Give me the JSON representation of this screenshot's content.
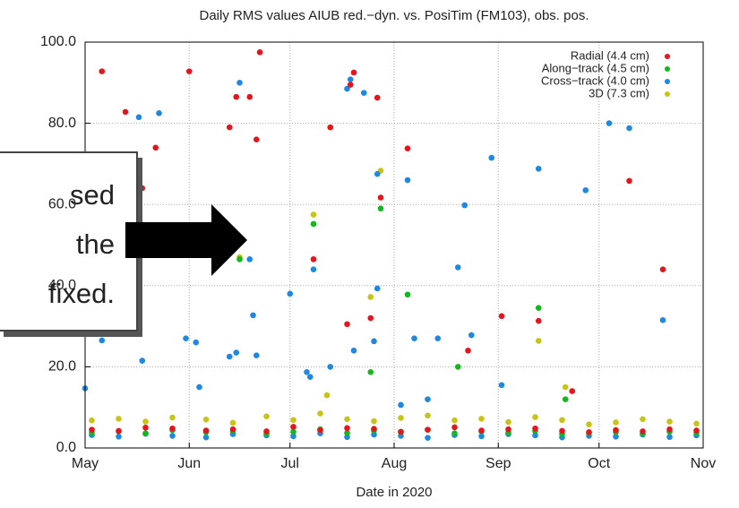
{
  "chart_data": {
    "type": "scatter",
    "title": "Daily RMS values AIUB red.−dyn. vs. PosiTim (FM103), obs. pos.",
    "x_label": "Date in 2020",
    "xlim": [
      122,
      306
    ],
    "xticks": [
      {
        "value": 122,
        "label": "May"
      },
      {
        "value": 153,
        "label": "Jun"
      },
      {
        "value": 183,
        "label": "Jul"
      },
      {
        "value": 214,
        "label": "Aug"
      },
      {
        "value": 245,
        "label": "Sep"
      },
      {
        "value": 275,
        "label": "Oct"
      },
      {
        "value": 306,
        "label": "Nov"
      }
    ],
    "ylim": [
      0,
      100
    ],
    "yticks": [
      {
        "value": 0,
        "label": "0.0"
      },
      {
        "value": 20,
        "label": "20.0"
      },
      {
        "value": 40,
        "label": "40.0"
      },
      {
        "value": 60,
        "label": "60.0"
      },
      {
        "value": 80,
        "label": "80.0"
      },
      {
        "value": 100,
        "label": "100.0"
      }
    ],
    "grid": true,
    "legend": "upper right",
    "series": [
      {
        "name": "Radial (4.4 cm)",
        "color": "#e8141c",
        "x": [
          124,
          132,
          140,
          148,
          158,
          166,
          176,
          184,
          192,
          200,
          208,
          216,
          224,
          232,
          240,
          248,
          256,
          264,
          272,
          280,
          288,
          296,
          304,
          127,
          134,
          143,
          139,
          153,
          165,
          167,
          171,
          173,
          174,
          190,
          195,
          200,
          201,
          202,
          207,
          209,
          210,
          218,
          236,
          246,
          257,
          267,
          284,
          294
        ],
        "values": [
          4.5,
          4.2,
          5.0,
          4.8,
          4.3,
          4.6,
          4.1,
          5.2,
          4.4,
          4.9,
          4.7,
          4.0,
          4.5,
          5.1,
          4.3,
          4.6,
          4.8,
          4.2,
          3.9,
          4.4,
          4.1,
          4.6,
          4.3,
          92.8,
          82.8,
          74,
          64,
          92.8,
          79,
          86.5,
          86.5,
          76,
          97.5,
          46.5,
          79,
          30.5,
          89.5,
          92.5,
          32,
          86.3,
          61.7,
          73.8,
          24,
          32.5,
          31.3,
          14,
          65.8,
          44
        ]
      },
      {
        "name": "Along−track (4.5 cm)",
        "color": "#12b81c",
        "x": [
          124,
          132,
          140,
          148,
          158,
          166,
          176,
          184,
          192,
          200,
          208,
          216,
          224,
          232,
          240,
          248,
          256,
          264,
          272,
          280,
          288,
          296,
          304,
          168,
          190,
          207,
          210,
          218,
          233,
          257,
          265
        ],
        "values": [
          3.8,
          4.1,
          3.6,
          4.4,
          3.9,
          4.2,
          3.5,
          4.0,
          4.6,
          3.7,
          4.3,
          3.9,
          4.5,
          3.6,
          4.1,
          3.8,
          4.2,
          3.4,
          3.7,
          3.9,
          3.5,
          4.0,
          3.8,
          46.5,
          55.2,
          18.7,
          59,
          37.8,
          20,
          34.5,
          12
        ]
      },
      {
        "name": "Cross−track (4.0 cm)",
        "color": "#1e88e5",
        "x": [
          124,
          132,
          140,
          148,
          158,
          166,
          176,
          184,
          192,
          200,
          208,
          216,
          224,
          232,
          240,
          248,
          256,
          264,
          272,
          280,
          288,
          296,
          304,
          122,
          127,
          138,
          144,
          139,
          152,
          155,
          156,
          165,
          167,
          168,
          171,
          172,
          173,
          183,
          188,
          189,
          190,
          195,
          200,
          201,
          202,
          205,
          208,
          209,
          209,
          216,
          218,
          220,
          224,
          227,
          233,
          235,
          237,
          243,
          246,
          257,
          271,
          278,
          284,
          294
        ],
        "values": [
          3.2,
          2.8,
          3.5,
          3.0,
          2.6,
          3.4,
          3.1,
          2.9,
          3.6,
          2.7,
          3.3,
          3.0,
          2.5,
          3.2,
          2.9,
          3.4,
          3.1,
          2.6,
          3.0,
          2.8,
          3.3,
          2.7,
          3.1,
          14.7,
          26.5,
          81.5,
          82.5,
          21.5,
          27,
          26,
          15,
          22.5,
          23.5,
          90,
          46.5,
          32.7,
          22.8,
          38,
          18.7,
          17.5,
          44,
          20,
          88.5,
          90.8,
          24,
          87.5,
          26.3,
          39.3,
          67.5,
          10.6,
          66,
          27,
          12,
          27,
          44.5,
          59.8,
          27.8,
          71.5,
          15.5,
          68.8,
          63.5,
          80,
          78.8,
          31.5
        ]
      },
      {
        "name": "3D (7.3 cm)",
        "color": "#c8c414",
        "x": [
          124,
          132,
          140,
          148,
          158,
          166,
          176,
          184,
          192,
          200,
          208,
          216,
          224,
          232,
          240,
          248,
          256,
          264,
          272,
          280,
          288,
          296,
          304,
          168,
          190,
          194,
          207,
          210,
          257,
          265
        ],
        "values": [
          6.8,
          7.2,
          6.5,
          7.5,
          7.0,
          6.2,
          7.8,
          6.9,
          8.5,
          7.1,
          6.6,
          7.4,
          8.0,
          6.8,
          7.2,
          6.4,
          7.6,
          6.9,
          5.8,
          6.3,
          7.1,
          6.5,
          6.0,
          47,
          57.5,
          13,
          37.2,
          68.3,
          26.4,
          15
        ]
      }
    ]
  },
  "callout": {
    "lines": [
      "sed",
      "the",
      "fixed."
    ]
  }
}
